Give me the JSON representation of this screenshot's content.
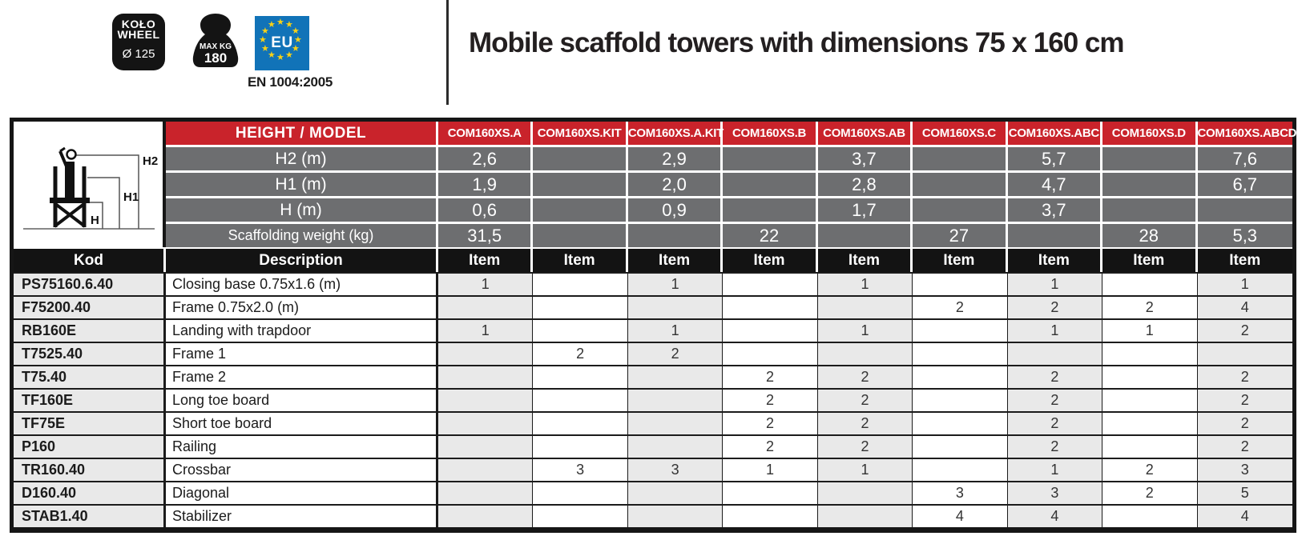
{
  "badges": {
    "wheel": {
      "line1": "KOŁO",
      "line2": "WHEEL",
      "line3": "Ø 125"
    },
    "weight": {
      "line1": "MAX KG",
      "line2": "180"
    },
    "eu": {
      "label": "EU",
      "star": "★"
    },
    "standard": "EN 1004:2005"
  },
  "title": "Mobile scaffold towers with dimensions 75 x 160 cm",
  "colors": {
    "header_red": "#c9232b",
    "spec_gray": "#6d6e70",
    "header_black": "#131313",
    "cell_light": "#e9e9e9",
    "eu_blue": "#1173b8",
    "star_yellow": "#f8d117"
  },
  "table": {
    "header_label": "HEIGHT / MODEL",
    "models": [
      "COM160XS.A",
      "COM160XS.KIT",
      "COM160XS.A.KIT",
      "COM160XS.B",
      "COM160XS.AB",
      "COM160XS.C",
      "COM160XS.ABC",
      "COM160XS.D",
      "COM160XS.ABCD"
    ],
    "diagram_labels": {
      "h2": "H2",
      "h1": "H1",
      "h": "H"
    },
    "spec_rows": [
      {
        "label": "H2 (m)",
        "values": [
          "2,6",
          "",
          "2,9",
          "",
          "3,7",
          "",
          "5,7",
          "",
          "7,6"
        ]
      },
      {
        "label": "H1 (m)",
        "values": [
          "1,9",
          "",
          "2,0",
          "",
          "2,8",
          "",
          "4,7",
          "",
          "6,7"
        ]
      },
      {
        "label": "H (m)",
        "values": [
          "0,6",
          "",
          "0,9",
          "",
          "1,7",
          "",
          "3,7",
          "",
          ""
        ]
      },
      {
        "label": "Scaffolding weight (kg)",
        "values": [
          "31,5",
          "",
          "",
          "22",
          "",
          "27",
          "",
          "28",
          "5,3"
        ]
      }
    ],
    "columns_header": {
      "kod": "Kod",
      "description": "Description",
      "item": "Item"
    },
    "parts": [
      {
        "kod": "PS75160.6.40",
        "description": "Closing base 0.75x1.6 (m)",
        "qty": [
          "1",
          "",
          "1",
          "",
          "1",
          "",
          "1",
          "",
          "1"
        ]
      },
      {
        "kod": "F75200.40",
        "description": "Frame 0.75x2.0 (m)",
        "qty": [
          "",
          "",
          "",
          "",
          "",
          "2",
          "2",
          "2",
          "4"
        ]
      },
      {
        "kod": "RB160E",
        "description": "Landing with trapdoor",
        "qty": [
          "1",
          "",
          "1",
          "",
          "1",
          "",
          "1",
          "1",
          "2"
        ]
      },
      {
        "kod": "T7525.40",
        "description": "Frame 1",
        "qty": [
          "",
          "2",
          "2",
          "",
          "",
          "",
          "",
          "",
          ""
        ]
      },
      {
        "kod": "T75.40",
        "description": "Frame 2",
        "qty": [
          "",
          "",
          "",
          "2",
          "2",
          "",
          "2",
          "",
          "2"
        ]
      },
      {
        "kod": "TF160E",
        "description": "Long toe board",
        "qty": [
          "",
          "",
          "",
          "2",
          "2",
          "",
          "2",
          "",
          "2"
        ]
      },
      {
        "kod": "TF75E",
        "description": "Short toe board",
        "qty": [
          "",
          "",
          "",
          "2",
          "2",
          "",
          "2",
          "",
          "2"
        ]
      },
      {
        "kod": "P160",
        "description": "Railing",
        "qty": [
          "",
          "",
          "",
          "2",
          "2",
          "",
          "2",
          "",
          "2"
        ]
      },
      {
        "kod": "TR160.40",
        "description": "Crossbar",
        "qty": [
          "",
          "3",
          "3",
          "1",
          "1",
          "",
          "1",
          "2",
          "3"
        ]
      },
      {
        "kod": "D160.40",
        "description": "Diagonal",
        "qty": [
          "",
          "",
          "",
          "",
          "",
          "3",
          "3",
          "2",
          "5"
        ]
      },
      {
        "kod": "STAB1.40",
        "description": "Stabilizer",
        "qty": [
          "",
          "",
          "",
          "",
          "",
          "4",
          "4",
          "",
          "4"
        ]
      }
    ]
  }
}
